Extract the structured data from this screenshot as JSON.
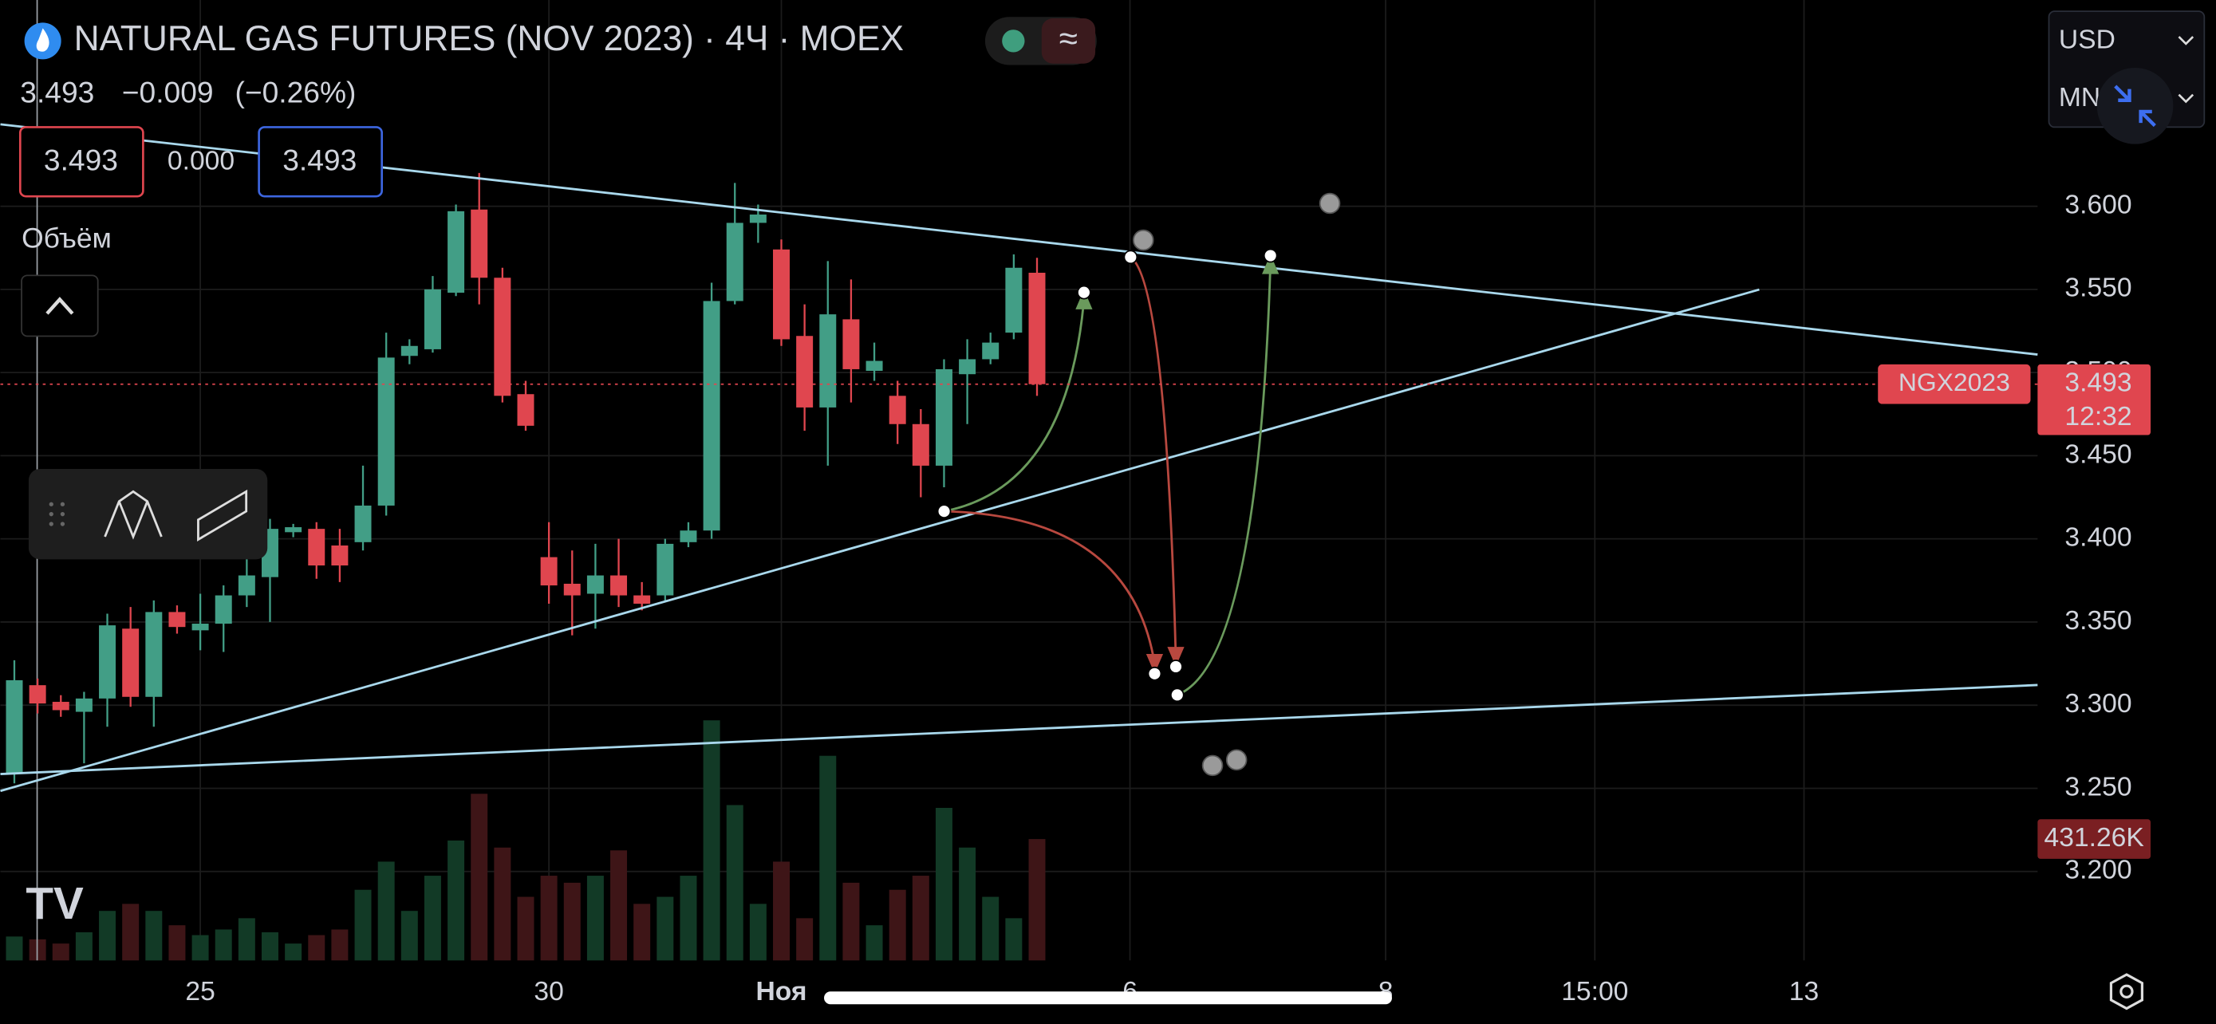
{
  "chart_data": {
    "type": "candlestick",
    "title": "NATURAL GAS FUTURES (NOV 2023) · 4Ч · MOEX",
    "quote": {
      "last": "3.493",
      "change": "−0.009",
      "change_percent": "(−0.26%)"
    },
    "buttons": [
      "3.493",
      "0.000",
      "3.493"
    ],
    "volume_title": "Объём",
    "currency": "USD",
    "unit": "MN",
    "symbol": "NGX2023",
    "last_price": {
      "value": 3.493,
      "label": "3.493"
    },
    "countdown": "12:32",
    "last_volume_label": "431.26K",
    "up_color": "#429e86",
    "down_color": "#e0464f",
    "up_volume_color": "#123a26",
    "down_volume_color": "#3e1517",
    "open": [
      3.259,
      3.312,
      3.302,
      3.296,
      3.304,
      3.346,
      3.305,
      3.356,
      3.345,
      3.349,
      3.366,
      3.377,
      3.404,
      3.406,
      3.396,
      3.398,
      3.42,
      3.51,
      3.514,
      3.548,
      3.598,
      3.557,
      3.487,
      3.389,
      3.373,
      3.367,
      3.378,
      3.366,
      3.366,
      3.398,
      3.405,
      3.543,
      3.59,
      3.574,
      3.522,
      3.479,
      3.532,
      3.501,
      3.486,
      3.469,
      3.444,
      3.499,
      3.508,
      3.524,
      3.56
    ],
    "high": [
      3.327,
      3.316,
      3.306,
      3.308,
      3.355,
      3.359,
      3.363,
      3.36,
      3.367,
      3.372,
      3.389,
      3.412,
      3.409,
      3.41,
      3.406,
      3.444,
      3.524,
      3.52,
      3.558,
      3.601,
      3.62,
      3.563,
      3.495,
      3.41,
      3.393,
      3.397,
      3.4,
      3.374,
      3.4,
      3.41,
      3.554,
      3.614,
      3.601,
      3.58,
      3.541,
      3.567,
      3.556,
      3.518,
      3.495,
      3.478,
      3.508,
      3.52,
      3.524,
      3.571,
      3.569
    ],
    "low": [
      3.253,
      3.295,
      3.293,
      3.265,
      3.287,
      3.299,
      3.287,
      3.343,
      3.333,
      3.332,
      3.359,
      3.35,
      3.401,
      3.376,
      3.374,
      3.393,
      3.414,
      3.505,
      3.512,
      3.546,
      3.541,
      3.482,
      3.465,
      3.361,
      3.342,
      3.346,
      3.359,
      3.357,
      3.363,
      3.395,
      3.4,
      3.541,
      3.578,
      3.516,
      3.465,
      3.444,
      3.482,
      3.495,
      3.457,
      3.425,
      3.431,
      3.469,
      3.505,
      3.52,
      3.486
    ],
    "close": [
      3.315,
      3.301,
      3.297,
      3.304,
      3.348,
      3.305,
      3.356,
      3.347,
      3.349,
      3.366,
      3.378,
      3.406,
      3.407,
      3.384,
      3.384,
      3.42,
      3.509,
      3.516,
      3.55,
      3.597,
      3.557,
      3.486,
      3.468,
      3.372,
      3.366,
      3.378,
      3.366,
      3.361,
      3.397,
      3.405,
      3.543,
      3.59,
      3.595,
      3.52,
      3.479,
      3.535,
      3.502,
      3.507,
      3.469,
      3.444,
      3.502,
      3.508,
      3.518,
      3.563,
      3.493
    ],
    "volume": [
      85000,
      75000,
      60000,
      100000,
      176000,
      201000,
      176000,
      125000,
      90000,
      110000,
      150000,
      100000,
      60000,
      90000,
      110000,
      251000,
      351000,
      176000,
      301000,
      426000,
      592000,
      401000,
      226000,
      301000,
      276000,
      301000,
      391000,
      201000,
      226000,
      301000,
      853000,
      552000,
      201000,
      351000,
      150000,
      727000,
      276000,
      125000,
      251000,
      301000,
      542000,
      401000,
      226000,
      150000,
      431260
    ],
    "xlim": [
      -0.6,
      87.05
    ],
    "xticks": [
      {
        "value": 8,
        "label": "25"
      },
      {
        "value": 23,
        "label": "30"
      },
      {
        "value": 33,
        "label": "Ноя"
      },
      {
        "value": 48,
        "label": "6"
      },
      {
        "value": 59,
        "label": "8"
      },
      {
        "value": 68,
        "label": "15:00"
      },
      {
        "value": 77,
        "label": "13"
      }
    ],
    "ylim": [
      3.1465,
      3.724
    ],
    "yticks": [
      {
        "value": 3.2,
        "label": "3.200"
      },
      {
        "value": 3.25,
        "label": "3.250"
      },
      {
        "value": 3.3,
        "label": "3.300"
      },
      {
        "value": 3.35,
        "label": "3.350"
      },
      {
        "value": 3.4,
        "label": "3.400"
      },
      {
        "value": 3.45,
        "label": "3.450"
      },
      {
        "value": 3.5,
        "label": "3.500"
      },
      {
        "value": 3.55,
        "label": "3.550"
      },
      {
        "value": 3.6,
        "label": "3.600"
      }
    ],
    "grid": true
  }
}
